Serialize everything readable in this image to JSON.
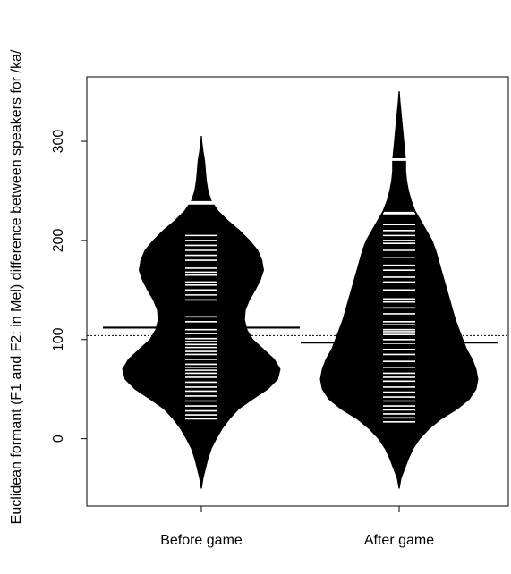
{
  "chart_data": {
    "type": "beanplot",
    "title": "",
    "xlabel": "",
    "ylabel": "Euclidean formant (F1 and F2: in Mel) difference between speakers for /ka/",
    "ylim": [
      -68,
      365
    ],
    "yticks": [
      0,
      100,
      200,
      300
    ],
    "grid": false,
    "overall_mean_line": 104,
    "overall_mean_line_style": "dotted",
    "categories": [
      "Before game",
      "After game"
    ],
    "beans": [
      {
        "label": "Before game",
        "mean": 112,
        "quantile_marks": [
          238
        ],
        "observations": [
          20,
          24,
          28,
          33,
          38,
          43,
          48,
          52,
          57,
          62,
          66,
          69,
          72,
          75,
          80,
          85,
          88,
          92,
          95,
          98,
          101,
          106,
          110,
          118,
          123,
          140,
          145,
          150,
          155,
          158,
          165,
          168,
          172,
          180,
          185,
          190,
          195,
          200,
          205,
          237,
          239
        ],
        "density": [
          [
            -50,
            0.2
          ],
          [
            -40,
            2
          ],
          [
            -30,
            5
          ],
          [
            -20,
            8
          ],
          [
            -10,
            12
          ],
          [
            0,
            18
          ],
          [
            10,
            25
          ],
          [
            20,
            34
          ],
          [
            30,
            45
          ],
          [
            40,
            62
          ],
          [
            50,
            80
          ],
          [
            60,
            92
          ],
          [
            70,
            95
          ],
          [
            80,
            88
          ],
          [
            90,
            75
          ],
          [
            100,
            62
          ],
          [
            110,
            55
          ],
          [
            120,
            52
          ],
          [
            130,
            53
          ],
          [
            140,
            58
          ],
          [
            150,
            65
          ],
          [
            160,
            71
          ],
          [
            170,
            75
          ],
          [
            180,
            73
          ],
          [
            190,
            68
          ],
          [
            200,
            58
          ],
          [
            210,
            46
          ],
          [
            220,
            32
          ],
          [
            230,
            20
          ],
          [
            240,
            12
          ],
          [
            250,
            8
          ],
          [
            260,
            6
          ],
          [
            270,
            5
          ],
          [
            280,
            4
          ],
          [
            290,
            2
          ],
          [
            300,
            0.5
          ],
          [
            305,
            0.2
          ]
        ]
      },
      {
        "label": "After game",
        "mean": 97,
        "quantile_marks": [
          282,
          228
        ],
        "observations": [
          17,
          21,
          25,
          29,
          33,
          38,
          42,
          47,
          52,
          58,
          62,
          66,
          72,
          78,
          85,
          90,
          96,
          100,
          105,
          108,
          110,
          115,
          118,
          126,
          132,
          138,
          141,
          150,
          158,
          163,
          170,
          175,
          183,
          190,
          197,
          200,
          205,
          210,
          216,
          227,
          281
        ],
        "density": [
          [
            -50,
            0.2
          ],
          [
            -40,
            2
          ],
          [
            -30,
            6
          ],
          [
            -20,
            10
          ],
          [
            -10,
            15
          ],
          [
            0,
            22
          ],
          [
            10,
            32
          ],
          [
            20,
            45
          ],
          [
            30,
            62
          ],
          [
            40,
            75
          ],
          [
            50,
            82
          ],
          [
            60,
            84
          ],
          [
            70,
            82
          ],
          [
            80,
            78
          ],
          [
            90,
            72
          ],
          [
            100,
            68
          ],
          [
            110,
            64
          ],
          [
            120,
            60
          ],
          [
            130,
            57
          ],
          [
            140,
            54
          ],
          [
            150,
            51
          ],
          [
            160,
            48
          ],
          [
            170,
            45
          ],
          [
            180,
            42
          ],
          [
            190,
            39
          ],
          [
            200,
            35
          ],
          [
            210,
            29
          ],
          [
            220,
            23
          ],
          [
            230,
            17
          ],
          [
            240,
            13
          ],
          [
            250,
            10
          ],
          [
            260,
            8
          ],
          [
            270,
            7
          ],
          [
            280,
            7
          ],
          [
            290,
            6
          ],
          [
            300,
            5
          ],
          [
            310,
            4
          ],
          [
            320,
            3
          ],
          [
            330,
            2
          ],
          [
            340,
            1
          ],
          [
            350,
            0.2
          ]
        ]
      }
    ]
  }
}
